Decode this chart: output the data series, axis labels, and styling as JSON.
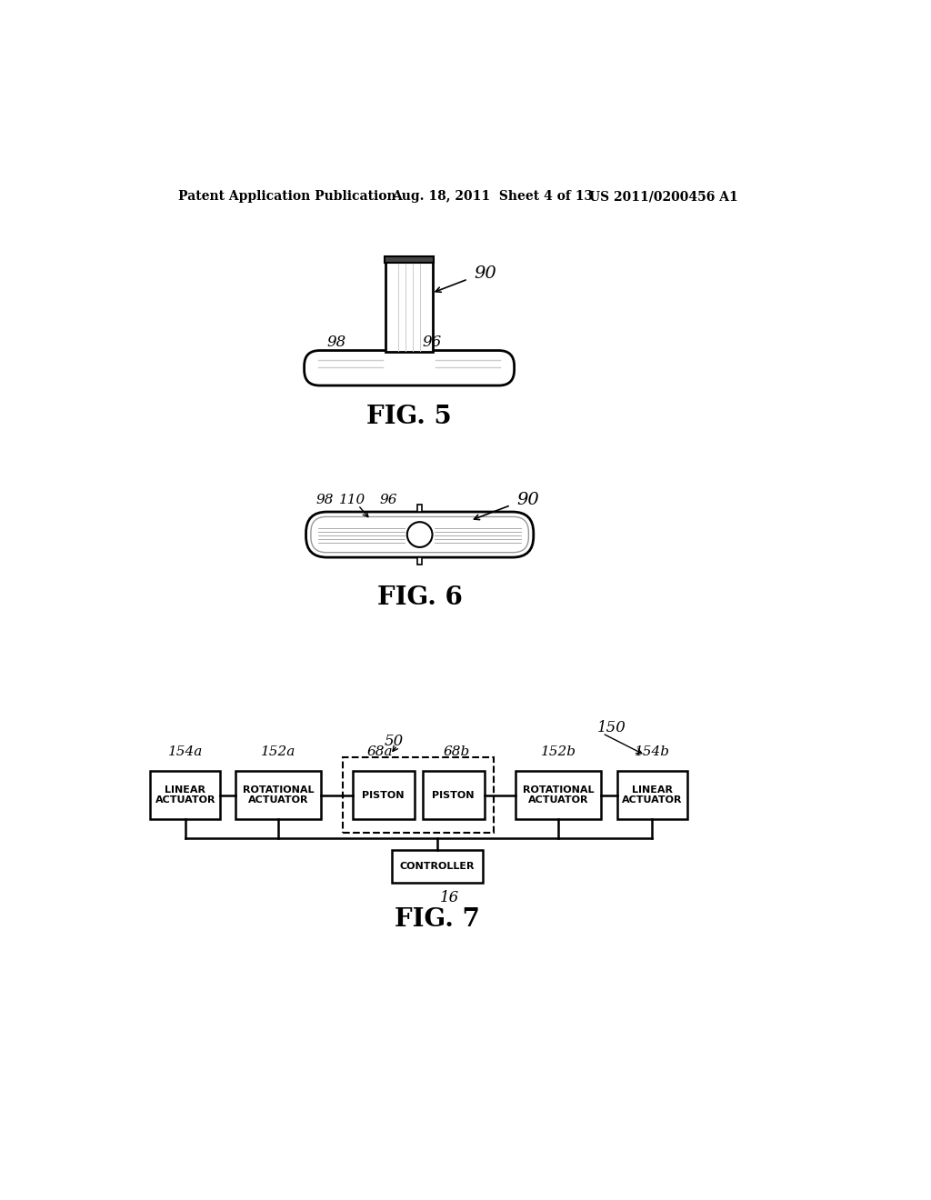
{
  "bg_color": "#ffffff",
  "header_text": "Patent Application Publication",
  "header_date": "Aug. 18, 2011  Sheet 4 of 13",
  "header_patent": "US 2011/0200456 A1",
  "fig5_label": "FIG. 5",
  "fig6_label": "FIG. 6",
  "fig7_label": "FIG. 7",
  "fig5_ref90": "90",
  "fig5_ref98": "98",
  "fig5_ref96": "96",
  "fig6_ref90": "90",
  "fig6_ref98": "98",
  "fig6_ref110": "110",
  "fig6_ref96": "96",
  "fig7_ref150": "150",
  "fig7_ref50": "50",
  "fig7_ref154a": "154a",
  "fig7_ref152a": "152a",
  "fig7_ref68a": "68a",
  "fig7_ref68b": "68b",
  "fig7_ref152b": "152b",
  "fig7_ref154b": "154b",
  "fig7_ref16": "16"
}
